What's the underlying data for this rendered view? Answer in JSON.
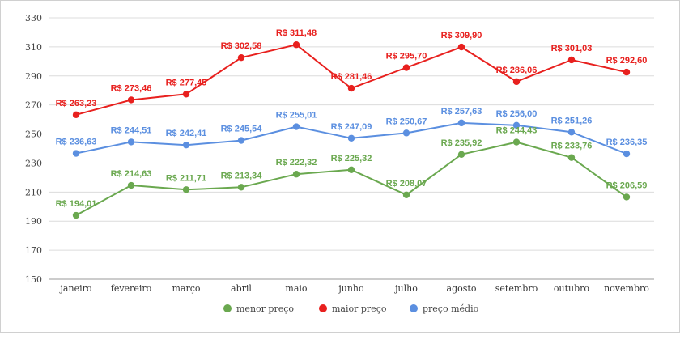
{
  "chart_data": {
    "type": "line",
    "title": "",
    "xlabel": "",
    "ylabel": "",
    "categories": [
      "janeiro",
      "fevereiro",
      "março",
      "abril",
      "maio",
      "junho",
      "julho",
      "agosto",
      "setembro",
      "outubro",
      "novembro"
    ],
    "ylim": [
      150,
      330
    ],
    "yticks": [
      150,
      170,
      190,
      210,
      230,
      250,
      270,
      290,
      310,
      330
    ],
    "grid": true,
    "legend": "bottom",
    "series": [
      {
        "name": "menor preço",
        "color": "#6aa84f",
        "values": [
          194.01,
          214.63,
          211.71,
          213.34,
          222.32,
          225.32,
          208.07,
          235.92,
          244.43,
          233.76,
          206.59
        ],
        "labels": [
          "R$ 194,01",
          "R$ 214,63",
          "R$ 211,71",
          "R$ 213,34",
          "R$ 222,32",
          "R$ 225,32",
          "R$ 208,07",
          "R$ 235,92",
          "R$ 244,43",
          "R$ 233,76",
          "R$ 206,59"
        ]
      },
      {
        "name": "maior preço",
        "color": "#e8201e",
        "values": [
          263.23,
          273.46,
          277.45,
          302.58,
          311.48,
          281.46,
          295.7,
          309.9,
          286.06,
          301.03,
          292.6
        ],
        "labels": [
          "R$ 263,23",
          "R$ 273,46",
          "R$ 277,45",
          "R$ 302,58",
          "R$ 311,48",
          "R$ 281,46",
          "R$ 295,70",
          "R$ 309,90",
          "R$ 286,06",
          "R$ 301,03",
          "R$ 292,60"
        ]
      },
      {
        "name": "preço médio",
        "color": "#5b8fe0",
        "values": [
          236.63,
          244.51,
          242.41,
          245.54,
          255.01,
          247.09,
          250.67,
          257.63,
          256.0,
          251.26,
          236.35
        ],
        "labels": [
          "R$ 236,63",
          "R$ 244,51",
          "R$ 242,41",
          "R$ 245,54",
          "R$ 255,01",
          "R$ 247,09",
          "R$ 250,67",
          "R$ 257,63",
          "R$ 256,00",
          "R$ 251,26",
          "R$ 236,35"
        ]
      }
    ]
  }
}
